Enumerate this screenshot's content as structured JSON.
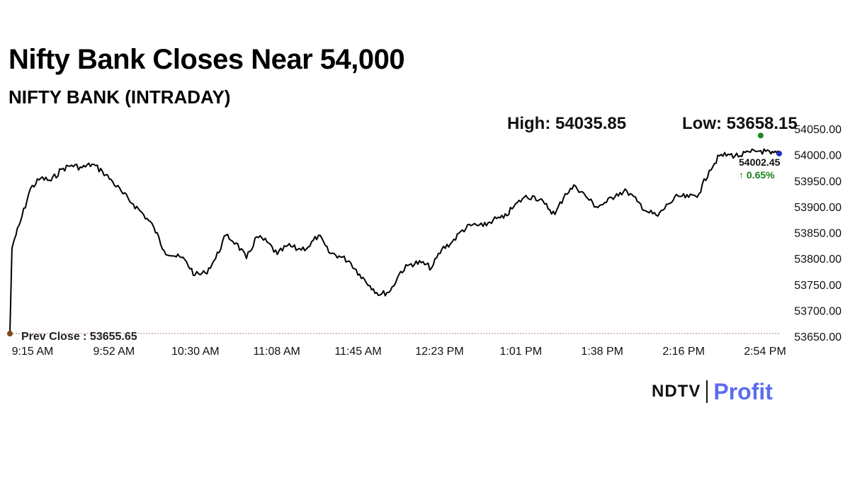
{
  "headline": "Nifty Bank Closes Near 54,000",
  "subtitle": "NIFTY BANK (INTRADAY)",
  "logo": {
    "ndtv": "NDTV",
    "profit": "Profit"
  },
  "colors": {
    "line": "#000000",
    "high_marker": "#1a8a1a",
    "last_marker": "#1f2fbf",
    "prev_close_marker": "#7a4a14",
    "change_text": "#1a7f1a",
    "prev_close_line": "#c9a7a0",
    "logo_accent": "#5b6cf0"
  },
  "chart_data": {
    "type": "line",
    "high_label": "High: 54035.85",
    "low_label": "Low: 53658.15",
    "high": 54035.85,
    "low": 53658.15,
    "last_value_label": "54002.45",
    "change_label": "↑ 0.65%",
    "prev_close_label": "Prev Close : 53655.65",
    "prev_close": 53655.65,
    "ylim": [
      53650,
      54050
    ],
    "y_ticks": [
      "54050.00",
      "54000.00",
      "53950.00",
      "53900.00",
      "53850.00",
      "53800.00",
      "53750.00",
      "53700.00",
      "53650.00"
    ],
    "x_ticks": [
      "9:15 AM",
      "9:52 AM",
      "10:30 AM",
      "11:08 AM",
      "11:45 AM",
      "12:23 PM",
      "1:01 PM",
      "1:38 PM",
      "2:16 PM",
      "2:54 PM"
    ],
    "grid": false,
    "x": [
      "9:15",
      "9:16",
      "9:17",
      "9:20",
      "9:25",
      "9:30",
      "9:35",
      "9:40",
      "9:45",
      "9:50",
      "9:55",
      "10:00",
      "10:05",
      "10:10",
      "10:15",
      "10:20",
      "10:25",
      "10:30",
      "10:35",
      "10:40",
      "10:45",
      "10:50",
      "10:55",
      "11:00",
      "11:05",
      "11:10",
      "11:15",
      "11:20",
      "11:25",
      "11:30",
      "11:35",
      "11:40",
      "11:45",
      "11:50",
      "11:55",
      "12:00",
      "12:05",
      "12:10",
      "12:15",
      "12:20",
      "12:25",
      "12:30",
      "12:35",
      "12:40",
      "12:45",
      "12:50",
      "12:55",
      "13:00",
      "13:05",
      "13:10",
      "13:15",
      "13:20",
      "13:25",
      "13:30",
      "13:35",
      "13:40",
      "13:45",
      "13:50",
      "13:55",
      "14:00",
      "14:05",
      "14:10",
      "14:15",
      "14:20",
      "14:25",
      "14:30",
      "14:35",
      "14:40",
      "14:45",
      "14:50",
      "14:55",
      "15:00",
      "15:05",
      "15:10",
      "15:15",
      "15:20",
      "15:25",
      "15:29"
    ],
    "values": [
      53658,
      53820,
      53835,
      53870,
      53935,
      53955,
      53950,
      53972,
      53980,
      53975,
      53982,
      53968,
      53948,
      53925,
      53905,
      53885,
      53860,
      53815,
      53805,
      53798,
      53768,
      53772,
      53800,
      53845,
      53830,
      53800,
      53842,
      53832,
      53808,
      53825,
      53818,
      53822,
      53845,
      53812,
      53805,
      53795,
      53770,
      53748,
      53730,
      53738,
      53775,
      53790,
      53792,
      53782,
      53818,
      53832,
      53855,
      53865,
      53862,
      53875,
      53878,
      53900,
      53918,
      53920,
      53905,
      53885,
      53925,
      53940,
      53920,
      53900,
      53908,
      53925,
      53930,
      53910,
      53890,
      53882,
      53905,
      53920,
      53918,
      53925,
      53970,
      53998,
      54000,
      53998,
      54005,
      54008,
      54002,
      54002.45
    ]
  }
}
